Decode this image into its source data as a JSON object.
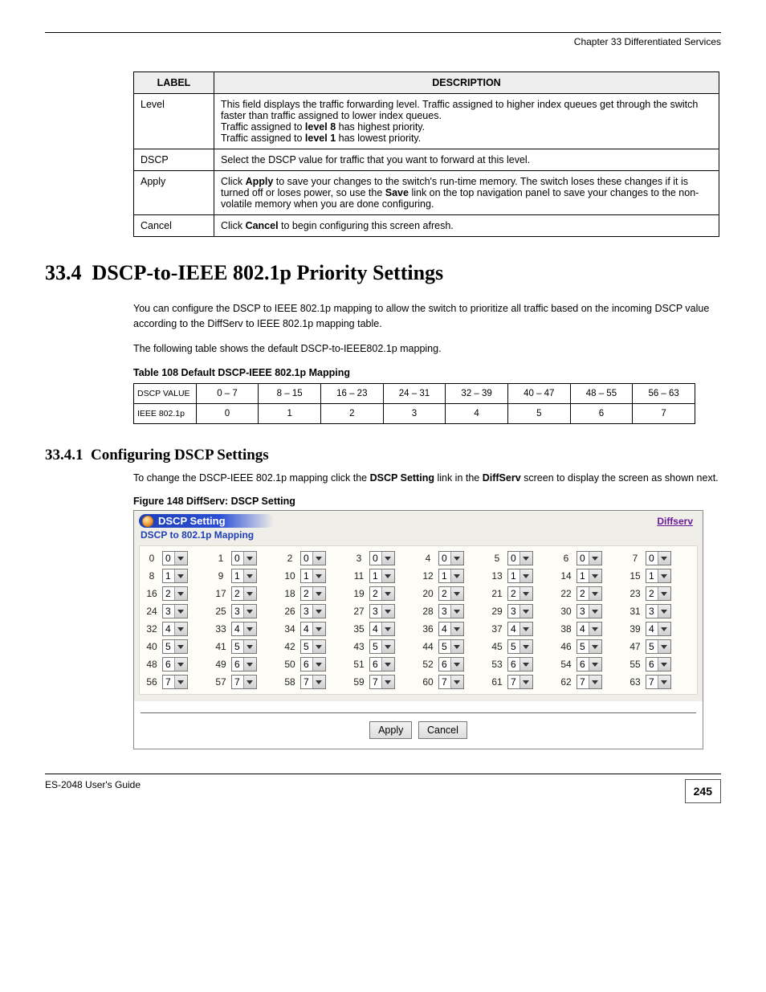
{
  "header": {
    "chapter_ref": "Chapter 33 Differentiated Services"
  },
  "desc_table": {
    "columns": [
      "LABEL",
      "DESCRIPTION"
    ],
    "rows": [
      {
        "label": "Level",
        "desc_lines": [
          {
            "prefix": "This field displays the traffic forwarding level. Traffic assigned to higher index queues get through the switch faster than traffic assigned to lower index queues.",
            "bold": []
          },
          {
            "text": "Traffic assigned to level 8 has highest priority."
          },
          {
            "text": "Traffic assigned to level 1 has lowest priority."
          }
        ],
        "html": "This field displays the traffic forwarding level. Traffic assigned to higher index queues get through the switch faster than traffic assigned to lower index queues.<br>Traffic assigned to <b>level 8</b> has highest priority.<br>Traffic assigned to <b>level 1</b> has lowest priority."
      },
      {
        "label": "DSCP",
        "html": "Select the DSCP value for traffic that you want to forward at this level."
      },
      {
        "label": "Apply",
        "html": "Click <b>Apply</b> to save your changes to the switch's run-time memory. The switch loses these changes if it is turned off or loses power, so use the <b>Save</b> link on the top navigation panel to save your changes to the non-volatile memory when you are done configuring."
      },
      {
        "label": "Cancel",
        "html": "Click <b>Cancel</b> to begin configuring this screen afresh."
      }
    ]
  },
  "section": {
    "number": "33.4",
    "title": "DSCP-to-IEEE 802.1p Priority Settings",
    "paragraph": "You can configure the DSCP to IEEE 802.1p mapping to allow the switch to prioritize all traffic based on the incoming DSCP value according to the DiffServ to IEEE 802.1p mapping table.",
    "paragraph2": "The following table shows the default DSCP-to-IEEE802.1p mapping.",
    "map_caption": "Table 108   Default DSCP-IEEE 802.1p Mapping",
    "map_headers": [
      "DSCP VALUE",
      "0 – 7",
      "8 – 15",
      "16 – 23",
      "24 – 31",
      "32 – 39",
      "40 – 47",
      "48 – 55",
      "56 – 63"
    ],
    "map_values": [
      "IEEE 802.1p",
      "0",
      "1",
      "2",
      "3",
      "4",
      "5",
      "6",
      "7"
    ]
  },
  "subsection": {
    "number": "33.4.1",
    "title": "Configuring DSCP Settings",
    "paragraph": "To change the DSCP-IEEE 802.1p mapping click the <b>DSCP Setting</b> link in the <b>DiffServ</b> screen to display the screen as shown next.",
    "fig_caption": "Figure 148   DiffServ: DSCP Setting"
  },
  "panel": {
    "title": "DSCP Setting",
    "link": "Diffserv",
    "subtitle": "DSCP to 802.1p Mapping",
    "rows": [
      [
        [
          0,
          0
        ],
        [
          1,
          0
        ],
        [
          2,
          0
        ],
        [
          3,
          0
        ],
        [
          4,
          0
        ],
        [
          5,
          0
        ],
        [
          6,
          0
        ],
        [
          7,
          0
        ]
      ],
      [
        [
          8,
          1
        ],
        [
          9,
          1
        ],
        [
          10,
          1
        ],
        [
          11,
          1
        ],
        [
          12,
          1
        ],
        [
          13,
          1
        ],
        [
          14,
          1
        ],
        [
          15,
          1
        ]
      ],
      [
        [
          16,
          2
        ],
        [
          17,
          2
        ],
        [
          18,
          2
        ],
        [
          19,
          2
        ],
        [
          20,
          2
        ],
        [
          21,
          2
        ],
        [
          22,
          2
        ],
        [
          23,
          2
        ]
      ],
      [
        [
          24,
          3
        ],
        [
          25,
          3
        ],
        [
          26,
          3
        ],
        [
          27,
          3
        ],
        [
          28,
          3
        ],
        [
          29,
          3
        ],
        [
          30,
          3
        ],
        [
          31,
          3
        ]
      ],
      [
        [
          32,
          4
        ],
        [
          33,
          4
        ],
        [
          34,
          4
        ],
        [
          35,
          4
        ],
        [
          36,
          4
        ],
        [
          37,
          4
        ],
        [
          38,
          4
        ],
        [
          39,
          4
        ]
      ],
      [
        [
          40,
          5
        ],
        [
          41,
          5
        ],
        [
          42,
          5
        ],
        [
          43,
          5
        ],
        [
          44,
          5
        ],
        [
          45,
          5
        ],
        [
          46,
          5
        ],
        [
          47,
          5
        ]
      ],
      [
        [
          48,
          6
        ],
        [
          49,
          6
        ],
        [
          50,
          6
        ],
        [
          51,
          6
        ],
        [
          52,
          6
        ],
        [
          53,
          6
        ],
        [
          54,
          6
        ],
        [
          55,
          6
        ]
      ],
      [
        [
          56,
          7
        ],
        [
          57,
          7
        ],
        [
          58,
          7
        ],
        [
          59,
          7
        ],
        [
          60,
          7
        ],
        [
          61,
          7
        ],
        [
          62,
          7
        ],
        [
          63,
          7
        ]
      ]
    ],
    "buttons": {
      "apply": "Apply",
      "cancel": "Cancel"
    }
  },
  "footer": {
    "left": "ES-2048 User's Guide",
    "page": "245"
  }
}
